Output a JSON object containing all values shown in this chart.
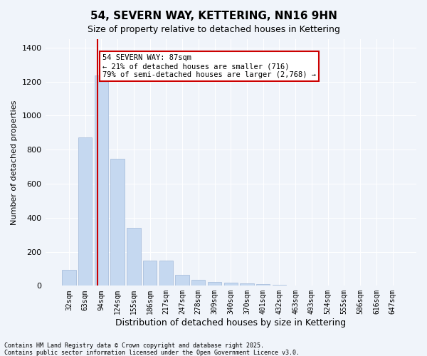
{
  "title1": "54, SEVERN WAY, KETTERING, NN16 9HN",
  "title2": "Size of property relative to detached houses in Kettering",
  "xlabel": "Distribution of detached houses by size in Kettering",
  "ylabel": "Number of detached properties",
  "categories": [
    "32sqm",
    "63sqm",
    "94sqm",
    "124sqm",
    "155sqm",
    "186sqm",
    "217sqm",
    "247sqm",
    "278sqm",
    "309sqm",
    "340sqm",
    "370sqm",
    "401sqm",
    "432sqm",
    "463sqm",
    "493sqm",
    "524sqm",
    "555sqm",
    "586sqm",
    "616sqm",
    "647sqm"
  ],
  "values": [
    93,
    872,
    1235,
    745,
    340,
    150,
    150,
    65,
    35,
    22,
    18,
    12,
    10,
    5,
    3,
    2,
    1,
    1,
    0,
    0,
    0
  ],
  "bar_color": "#c5d8f0",
  "bar_edge_color": "#a0b8d8",
  "vline_x_index": 2,
  "vline_color": "#cc0000",
  "annotation_text": "54 SEVERN WAY: 87sqm\n← 21% of detached houses are smaller (716)\n79% of semi-detached houses are larger (2,768) →",
  "annotation_box_color": "#ffffff",
  "annotation_box_edge": "#cc0000",
  "footer1": "Contains HM Land Registry data © Crown copyright and database right 2025.",
  "footer2": "Contains public sector information licensed under the Open Government Licence v3.0.",
  "bg_color": "#f0f4fa",
  "ylim": [
    0,
    1450
  ],
  "yticks": [
    0,
    200,
    400,
    600,
    800,
    1000,
    1200,
    1400
  ]
}
